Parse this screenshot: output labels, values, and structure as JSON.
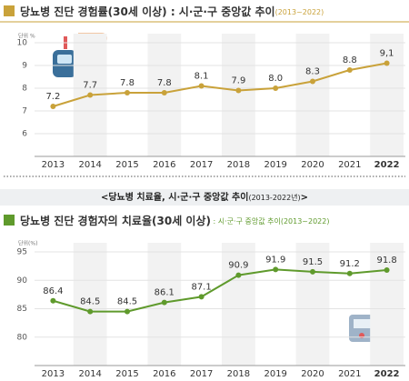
{
  "chart_data": [
    {
      "type": "line",
      "title": "당뇨병 진단 경험률(30세 이상) : 시·군·구 중앙값 추이",
      "title_period": "(2013~2022)",
      "y_label": "단위 %",
      "categories": [
        "2013",
        "2014",
        "2015",
        "2016",
        "2017",
        "2018",
        "2019",
        "2020",
        "2021",
        "2022"
      ],
      "values": [
        7.2,
        7.7,
        7.8,
        7.8,
        8.1,
        7.9,
        8.0,
        8.3,
        8.8,
        9.1
      ],
      "value_labels": [
        "7.2",
        "7.7",
        "7.8",
        "7.8",
        "8.1",
        "7.9",
        "8.0",
        "8.3",
        "8.8",
        "9,1"
      ],
      "color": "#c9a23a",
      "ylim": [
        5,
        10
      ],
      "yticks": [
        6,
        7,
        8,
        9,
        10
      ],
      "grid": true
    },
    {
      "type": "line",
      "banner": "<당뇨병 치료율, 시·군·구 중앙값 추이",
      "banner_period": "(2013-2022년)",
      "banner_end": ">",
      "title": "당뇨병 진단 경험자의 치료율(30세 이상)",
      "title_period": " : 시·군·구 중앙값 추이(2013~2022)",
      "y_label": "단위(%)",
      "categories": [
        "2013",
        "2014",
        "2015",
        "2016",
        "2017",
        "2018",
        "2019",
        "2020",
        "2021",
        "2022"
      ],
      "values": [
        86.4,
        84.5,
        84.5,
        86.1,
        87.1,
        90.9,
        91.9,
        91.5,
        91.2,
        91.8
      ],
      "color": "#5f9a2c",
      "ylim": [
        75,
        95
      ],
      "yticks": [
        80,
        85,
        90,
        95
      ],
      "grid": true
    }
  ]
}
